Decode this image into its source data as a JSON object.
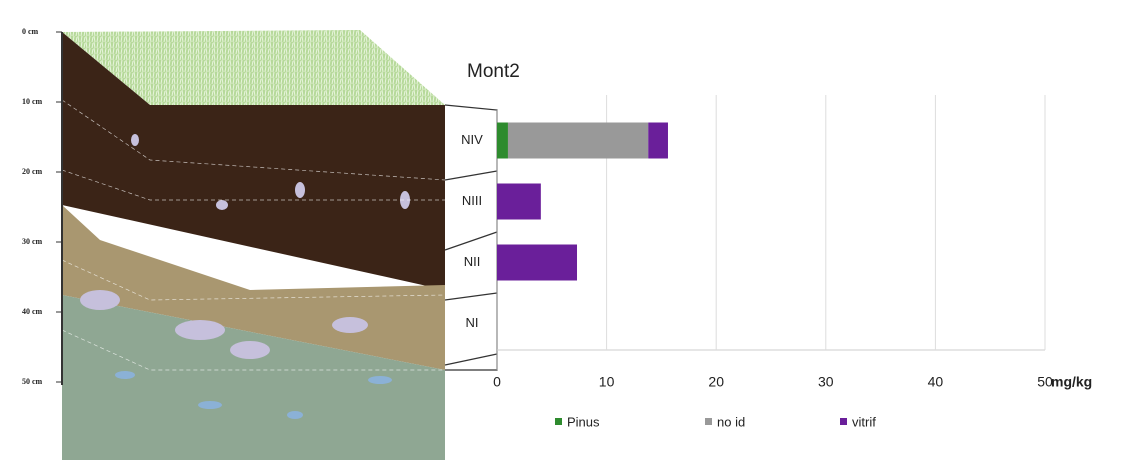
{
  "chart_data": {
    "type": "stacked-barh",
    "title": "Mont2",
    "categories": [
      "NIV",
      "NIII",
      "NII",
      "NI"
    ],
    "series": [
      {
        "name": "Pinus",
        "color": "#2e8b2e",
        "values": [
          1,
          0,
          0,
          0
        ]
      },
      {
        "name": "no id",
        "color": "#999999",
        "values": [
          12.8,
          0,
          0,
          0
        ]
      },
      {
        "name": "vitrif",
        "color": "#6a1f9a",
        "values": [
          1.8,
          4,
          7.3,
          0
        ]
      }
    ],
    "xlim": [
      0,
      50
    ],
    "xticks": [
      0,
      10,
      20,
      30,
      40,
      50
    ],
    "xlabel": "mg/kg",
    "grid": true,
    "depth_labels": [
      "0 cm",
      "10 cm",
      "20 cm",
      "30 cm",
      "40 cm",
      "50 cm"
    ]
  }
}
